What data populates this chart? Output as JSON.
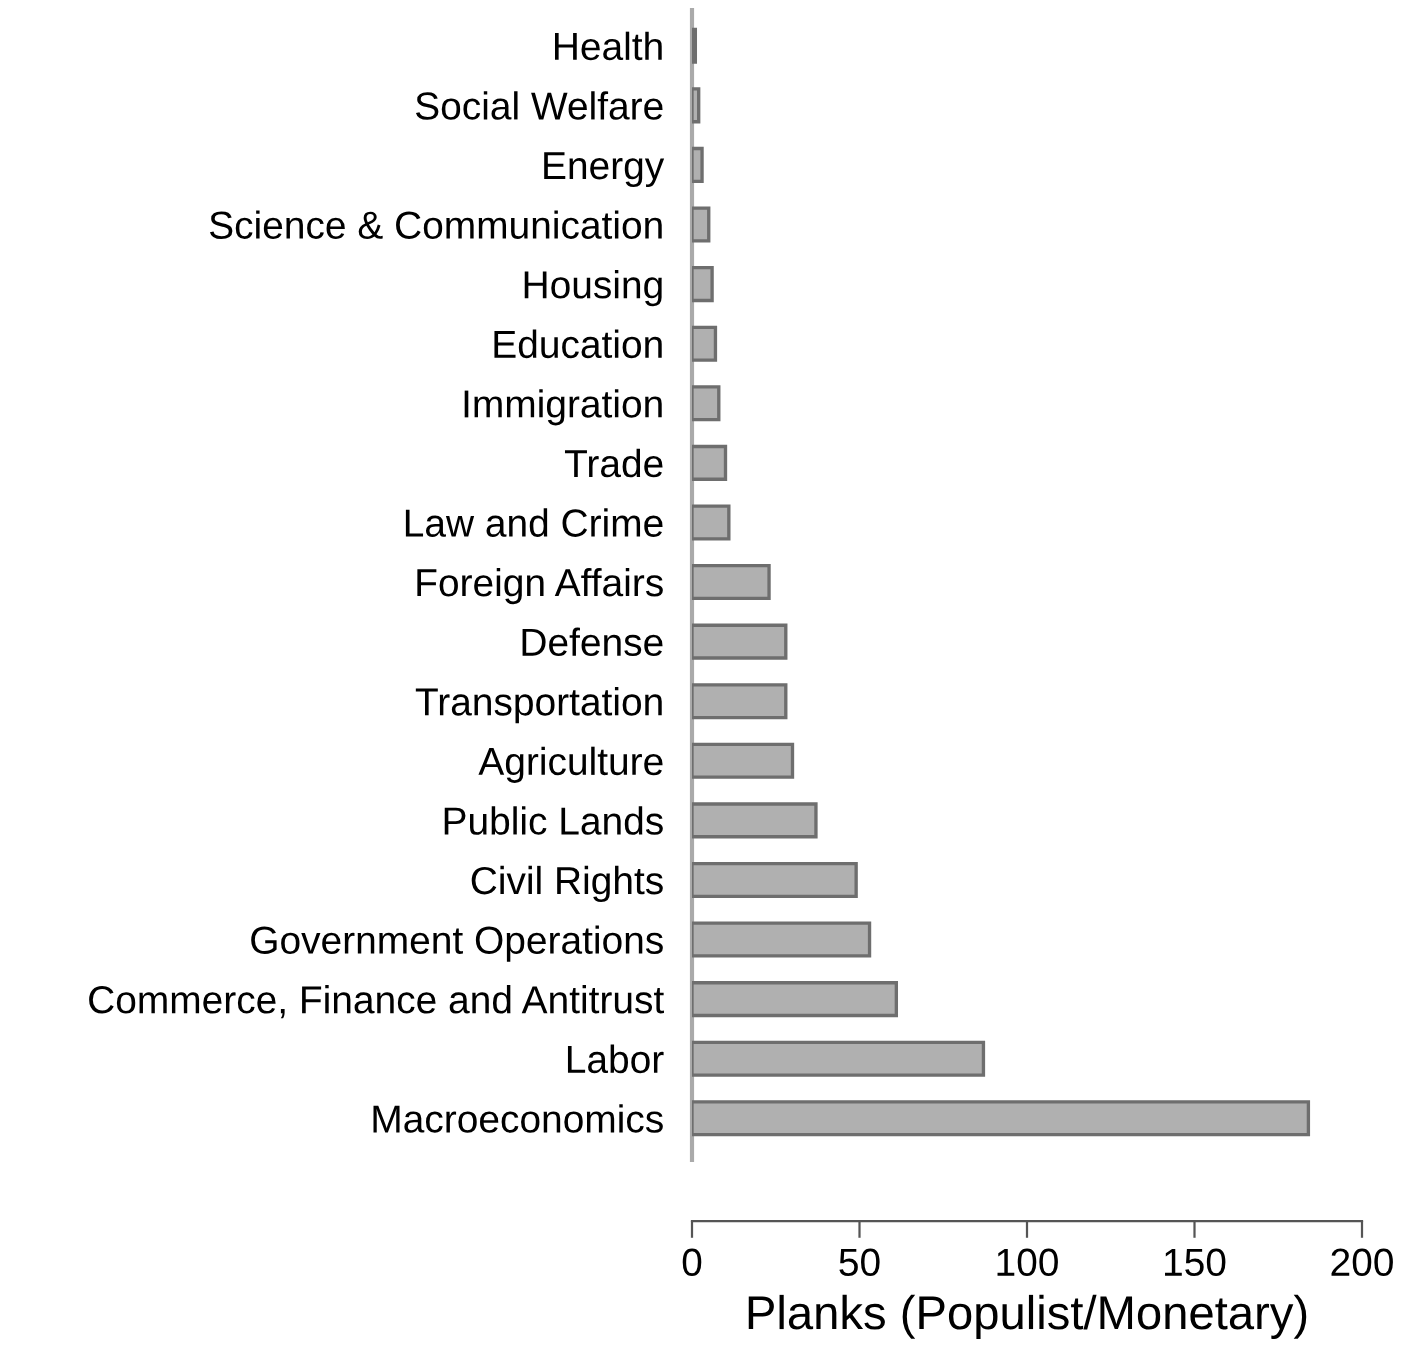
{
  "chart_data": {
    "type": "bar",
    "orientation": "horizontal",
    "xlabel": "Planks (Populist/Monetary)",
    "categories": [
      "Health",
      "Social Welfare",
      "Energy",
      "Science & Communication",
      "Housing",
      "Education",
      "Immigration",
      "Trade",
      "Law and Crime",
      "Foreign Affairs",
      "Defense",
      "Transportation",
      "Agriculture",
      "Public Lands",
      "Civil Rights",
      "Government Operations",
      "Commerce, Finance and Antitrust",
      "Labor",
      "Macroeconomics"
    ],
    "values": [
      1,
      2,
      3,
      5,
      6,
      7,
      8,
      10,
      11,
      23,
      28,
      28,
      30,
      37,
      49,
      53,
      61,
      87,
      184
    ],
    "color": "#b0b0b0",
    "xlim": [
      0,
      200
    ],
    "xticks": [
      0,
      50,
      100,
      150,
      200
    ],
    "grid": false,
    "legend": false
  }
}
